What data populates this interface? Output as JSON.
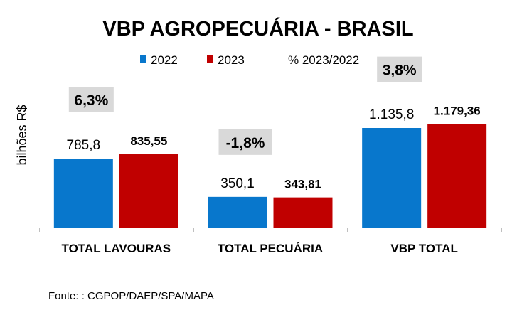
{
  "chart_data": {
    "type": "bar",
    "title": "VBP AGROPECUÁRIA - BRASIL",
    "ylabel": "bilhões R$",
    "xlabel": "",
    "ylim": [
      0,
      1250
    ],
    "grid": false,
    "legend_position": "top",
    "categories": [
      "TOTAL LAVOURAS",
      "TOTAL PECUÁRIA",
      "VBP TOTAL"
    ],
    "series": [
      {
        "name": "2022",
        "color": "#0877CC",
        "values": [
          785.8,
          350.1,
          1135.8
        ],
        "labels": [
          "785,8",
          "350,1",
          "1.135,8"
        ]
      },
      {
        "name": "2023",
        "color": "#C00000",
        "values": [
          835.55,
          343.81,
          1179.36
        ],
        "labels": [
          "835,55",
          "343,81",
          "1.179,36"
        ]
      }
    ],
    "pct_change": {
      "name": "% 2023/2022",
      "labels": [
        "6,3%",
        "-1,8%",
        "3,8%"
      ],
      "values": [
        6.3,
        -1.8,
        3.8
      ],
      "box_color": "#D9D9D9"
    },
    "source": "Fonte: : CGPOP/DAEP/SPA/MAPA"
  }
}
